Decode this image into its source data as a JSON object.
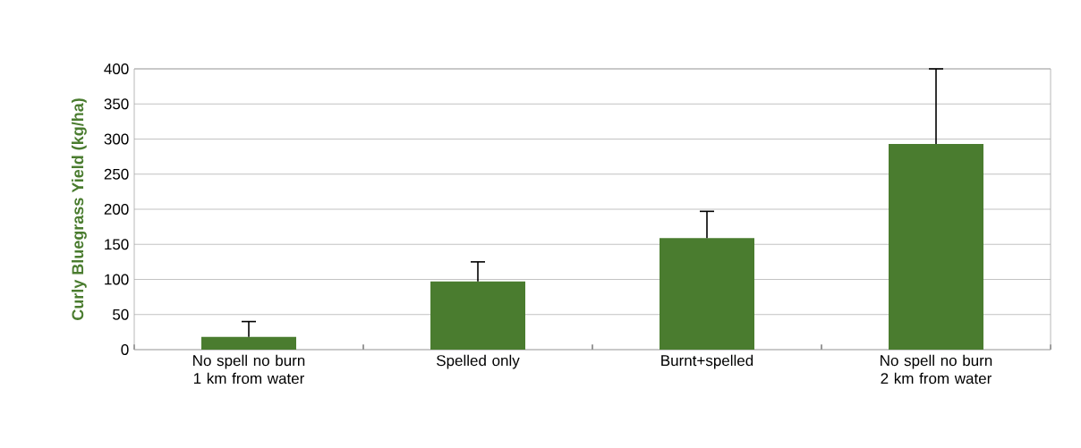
{
  "chart_data": {
    "type": "bar",
    "ylabel": "Curly Bluegrass Yield (kg/ha)",
    "categories": [
      "No spell no burn 1 km from water",
      "Spelled only",
      "Burnt+spelled",
      "No spell no burn 2 km from water"
    ],
    "values": [
      18,
      97,
      159,
      293
    ],
    "errors": [
      [
        18,
        40
      ],
      [
        97,
        125
      ],
      [
        159,
        197
      ],
      [
        293,
        400
      ]
    ],
    "color": "#4a7c2f",
    "ylim": [
      0,
      400
    ],
    "yticks": [
      0,
      50,
      100,
      150,
      200,
      250,
      300,
      350,
      400
    ],
    "grid": "y"
  }
}
